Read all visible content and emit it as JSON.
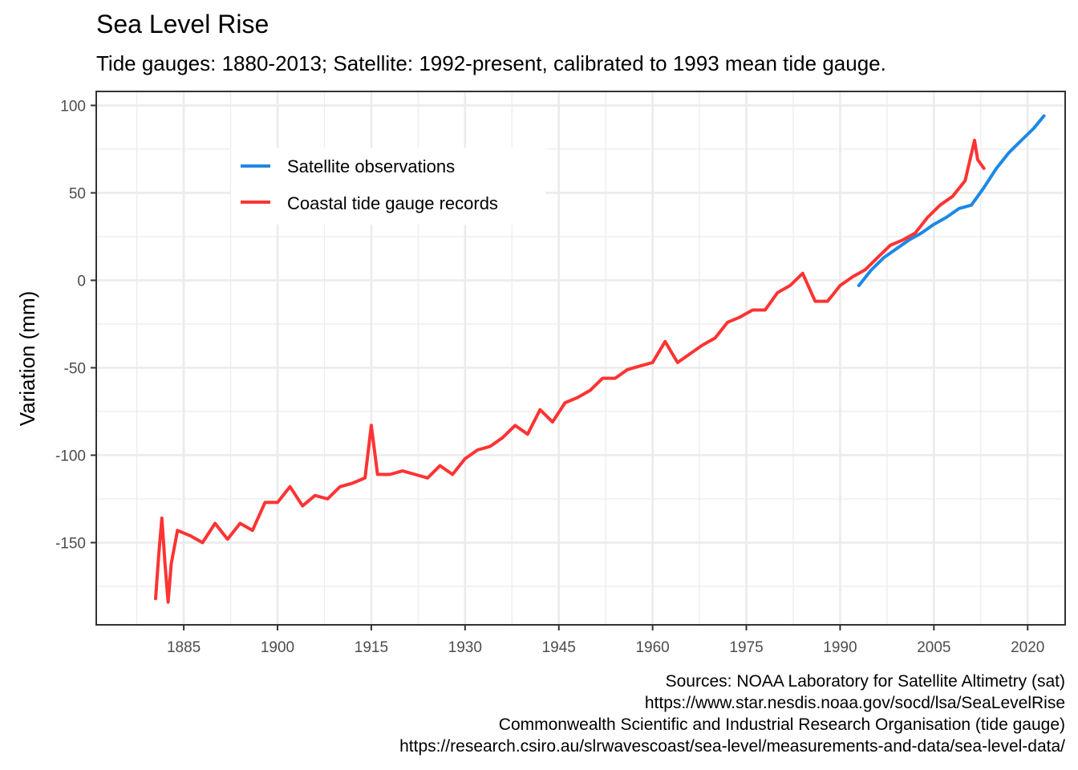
{
  "chart_data": {
    "type": "line",
    "title": "Sea Level Rise",
    "subtitle": "Tide gauges: 1880-2013; Satellite: 1992-present, calibrated to 1993 mean tide gauge.",
    "xlabel": "",
    "ylabel": "Variation (mm)",
    "xlim": [
      1871,
      2026
    ],
    "ylim": [
      -197,
      108
    ],
    "x_ticks": [
      1885,
      1900,
      1915,
      1930,
      1945,
      1960,
      1975,
      1990,
      2005,
      2020
    ],
    "y_ticks": [
      -150,
      -100,
      -50,
      0,
      50,
      100
    ],
    "grid": true,
    "legend_position": "top-left",
    "caption": [
      "Sources: NOAA Laboratory for Satellite Altimetry (sat)",
      "https://www.star.nesdis.noaa.gov/socd/lsa/SeaLevelRise",
      "Commonwealth Scientific and Industrial Research Organisation (tide gauge)",
      "https://research.csiro.au/slrwavescoast/sea-level/measurements-and-data/sea-level-data/"
    ],
    "series": [
      {
        "name": "Satellite observations",
        "color": "#1E88E5",
        "x": [
          1993,
          1995,
          1997,
          1999,
          2001,
          2003,
          2005,
          2007,
          2009,
          2011,
          2013,
          2015,
          2017,
          2019,
          2021,
          2022.6
        ],
        "y": [
          -3,
          6,
          13,
          18,
          23,
          27,
          32,
          36,
          41,
          43,
          53,
          64,
          73,
          80,
          87,
          94
        ]
      },
      {
        "name": "Coastal tide gauge records",
        "color": "#FF3333",
        "x": [
          1880.5,
          1881,
          1881.5,
          1882,
          1882.5,
          1883,
          1884,
          1886,
          1888,
          1890,
          1892,
          1894,
          1896,
          1898,
          1900,
          1902,
          1904,
          1906,
          1908,
          1910,
          1912,
          1914,
          1915,
          1916,
          1918,
          1920,
          1922,
          1924,
          1926,
          1928,
          1930,
          1932,
          1934,
          1936,
          1938,
          1940,
          1942,
          1944,
          1946,
          1948,
          1950,
          1952,
          1954,
          1956,
          1958,
          1960,
          1962,
          1964,
          1966,
          1968,
          1970,
          1972,
          1974,
          1976,
          1978,
          1980,
          1982,
          1984,
          1986,
          1988,
          1990,
          1992,
          1994,
          1996,
          1998,
          2000,
          2002,
          2004,
          2006,
          2008,
          2010,
          2011.5,
          2012,
          2013
        ],
        "y": [
          -182,
          -157,
          -136,
          -162,
          -184,
          -162,
          -143,
          -146,
          -150,
          -139,
          -148,
          -139,
          -143,
          -127,
          -127,
          -118,
          -129,
          -123,
          -125,
          -118,
          -116,
          -113,
          -83,
          -111,
          -111,
          -109,
          -111,
          -113,
          -106,
          -111,
          -102,
          -97,
          -95,
          -90,
          -83,
          -88,
          -74,
          -81,
          -70,
          -67,
          -63,
          -56,
          -56,
          -51,
          -49,
          -47,
          -35,
          -47,
          -42,
          -37,
          -33,
          -24,
          -21,
          -17,
          -17,
          -7,
          -3,
          4,
          -12,
          -12,
          -3,
          2,
          6,
          13,
          20,
          23,
          27,
          36,
          43,
          48,
          57,
          80,
          69,
          64
        ]
      }
    ]
  }
}
